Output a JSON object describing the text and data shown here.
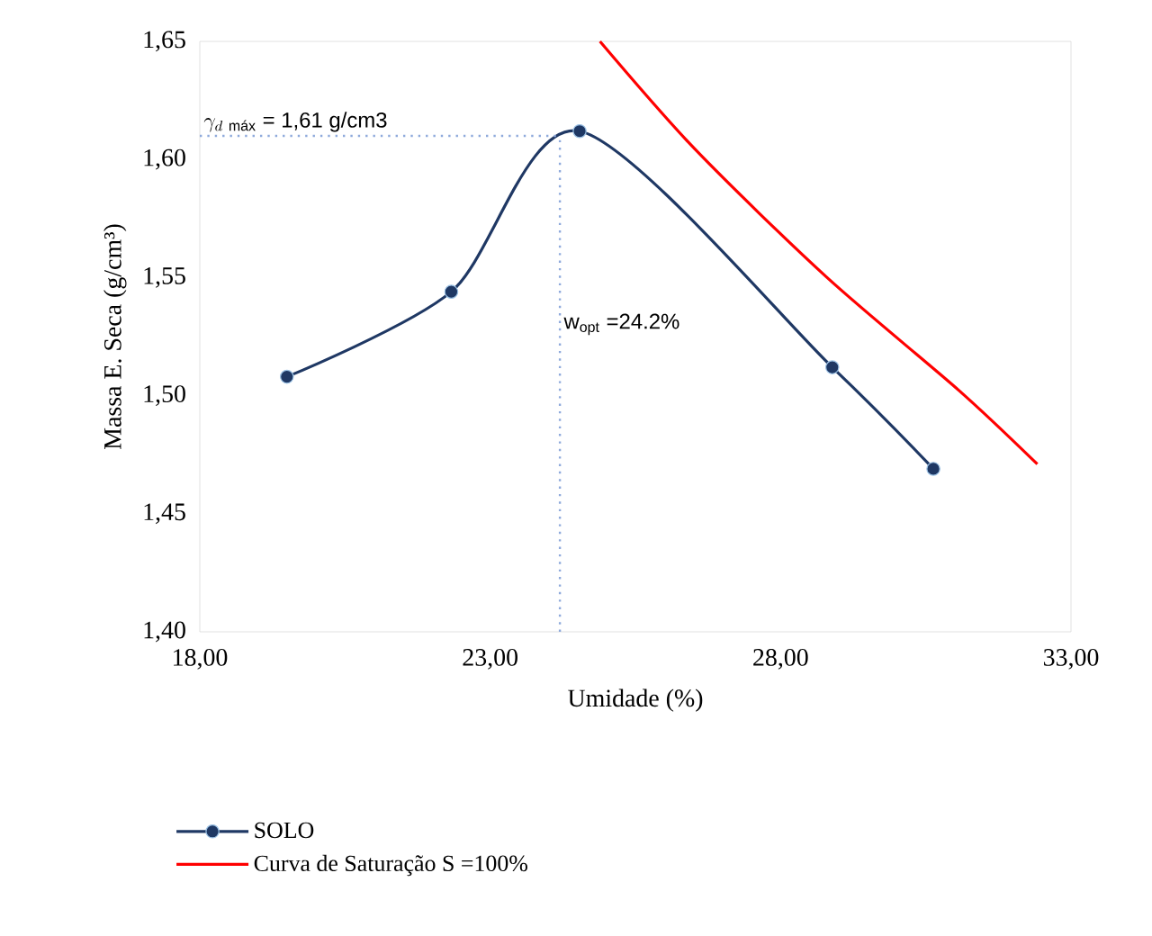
{
  "chart_data": {
    "type": "line",
    "xlabel": "Umidade  (%)",
    "ylabel": "Massa E. Seca (g/cm³)",
    "xlim": [
      18,
      33
    ],
    "ylim": [
      1.4,
      1.65
    ],
    "xticks": [
      {
        "value": 18,
        "label": "18,00"
      },
      {
        "value": 23,
        "label": "23,00"
      },
      {
        "value": 28,
        "label": "28,00"
      },
      {
        "value": 33,
        "label": "33,00"
      }
    ],
    "yticks": [
      {
        "value": 1.4,
        "label": "1,40"
      },
      {
        "value": 1.45,
        "label": "1,45"
      },
      {
        "value": 1.5,
        "label": "1,50"
      },
      {
        "value": 1.55,
        "label": "1,55"
      },
      {
        "value": 1.6,
        "label": "1,60"
      },
      {
        "value": 1.65,
        "label": "1,65"
      }
    ],
    "grid": false,
    "legend": "bottom left",
    "line_style": "solid",
    "series": [
      {
        "name": "SOLO",
        "color": "#1f3864",
        "marker": "circle",
        "x": [
          19.5,
          22.33,
          24.54,
          28.89,
          30.63
        ],
        "values": [
          1.508,
          1.544,
          1.612,
          1.512,
          1.469
        ]
      },
      {
        "name": "Curva de Saturação S =100%",
        "color": "#ff0000",
        "marker": "none",
        "x": [
          24.89,
          26.54,
          28.8,
          31.08,
          32.42
        ],
        "values": [
          1.65,
          1.604,
          1.55,
          1.502,
          1.471
        ]
      }
    ],
    "ref_lines": [
      {
        "axis": "y",
        "value": 1.61,
        "label": "\\gamma_{d\\ \\text{máx}} \\text{ = 1,61 g/cm3}",
        "color": "#8faadc",
        "line_style": "dotted"
      },
      {
        "axis": "x",
        "value": 24.2,
        "label": "w$_{opt}$ =24.2%",
        "color": "#8faadc",
        "line_style": "dotted"
      }
    ]
  }
}
